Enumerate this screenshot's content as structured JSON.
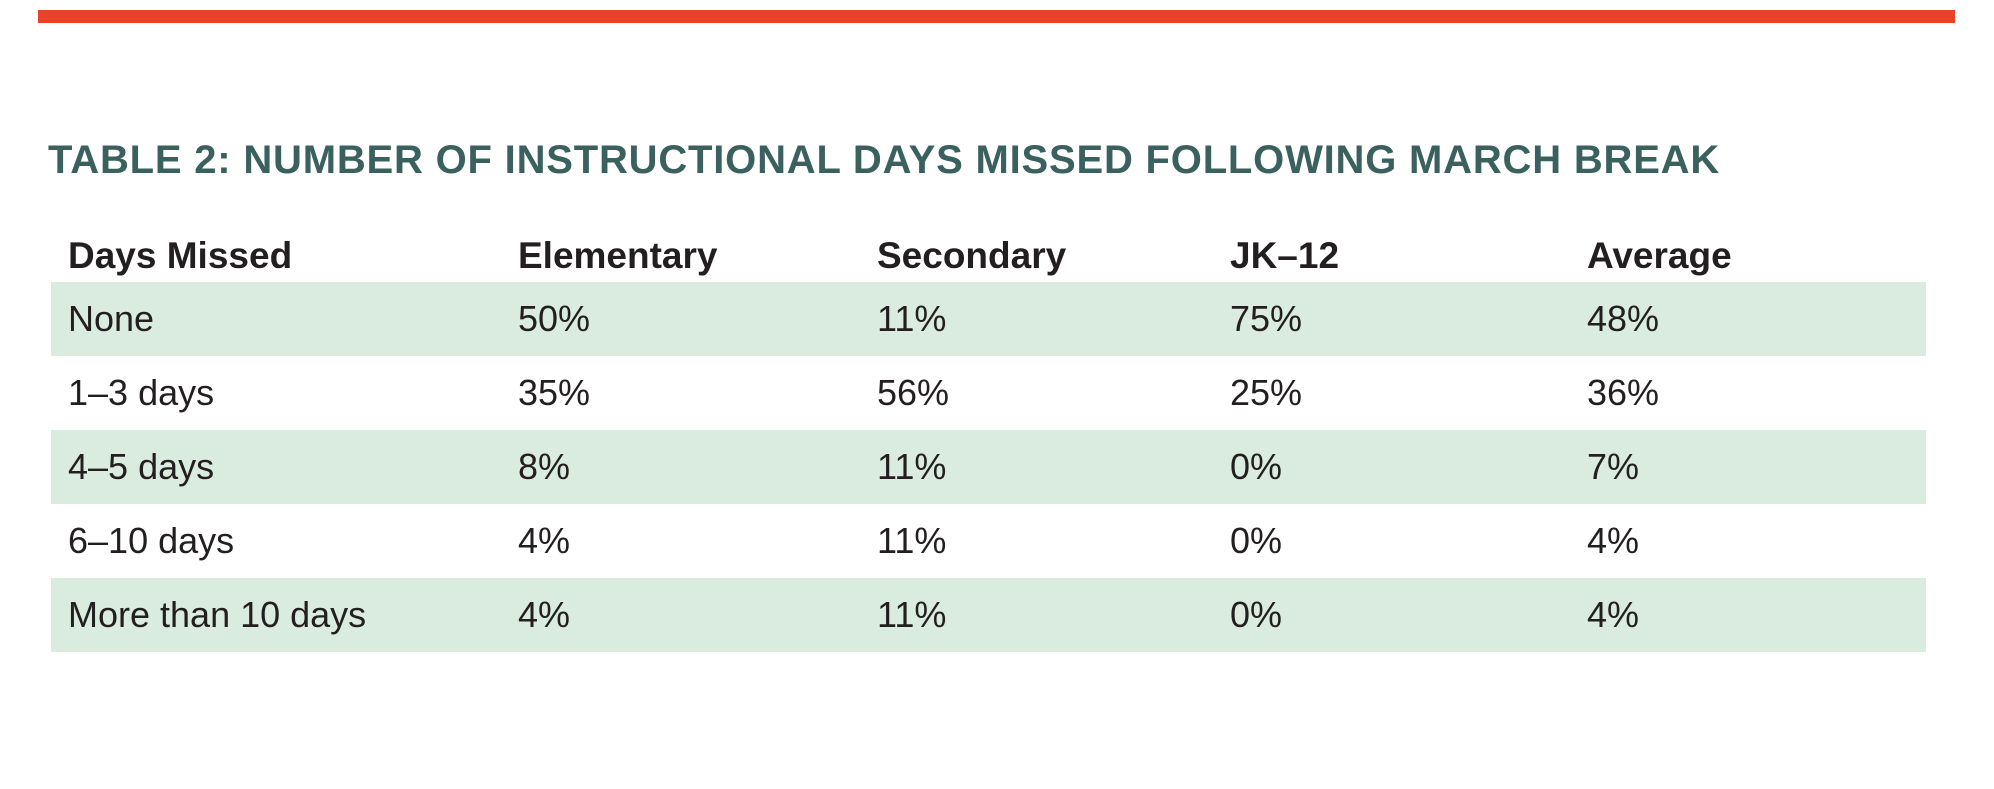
{
  "title": "TABLE 2: NUMBER OF INSTRUCTIONAL DAYS MISSED FOLLOWING MARCH BREAK",
  "colors": {
    "accent_bar": "#e8432a",
    "title_text": "#3a615d",
    "row_highlight": "#d9ecdf",
    "body_text": "#231f20"
  },
  "table": {
    "columns": [
      "Days Missed",
      "Elementary",
      "Secondary",
      "JK–12",
      "Average"
    ],
    "rows": [
      {
        "label": "None",
        "values": [
          "50%",
          "11%",
          "75%",
          "48%"
        ],
        "highlighted": true
      },
      {
        "label": "1–3 days",
        "values": [
          "35%",
          "56%",
          "25%",
          "36%"
        ],
        "highlighted": false
      },
      {
        "label": "4–5 days",
        "values": [
          "8%",
          "11%",
          "0%",
          "7%"
        ],
        "highlighted": true
      },
      {
        "label": "6–10 days",
        "values": [
          "4%",
          "11%",
          "0%",
          "4%"
        ],
        "highlighted": false
      },
      {
        "label": "More than 10 days",
        "values": [
          "4%",
          "11%",
          "0%",
          "4%"
        ],
        "highlighted": true
      }
    ]
  },
  "chart_data": {
    "type": "table",
    "title": "TABLE 2: NUMBER OF INSTRUCTIONAL DAYS MISSED FOLLOWING MARCH BREAK",
    "columns": [
      "Days Missed",
      "Elementary",
      "Secondary",
      "JK–12",
      "Average"
    ],
    "categories": [
      "None",
      "1–3 days",
      "4–5 days",
      "6–10 days",
      "More than 10 days"
    ],
    "series": [
      {
        "name": "Elementary",
        "values": [
          50,
          35,
          8,
          4,
          4
        ]
      },
      {
        "name": "Secondary",
        "values": [
          11,
          56,
          11,
          11,
          11
        ]
      },
      {
        "name": "JK–12",
        "values": [
          75,
          25,
          0,
          0,
          0
        ]
      },
      {
        "name": "Average",
        "values": [
          48,
          36,
          7,
          4,
          4
        ]
      }
    ],
    "unit": "%"
  }
}
